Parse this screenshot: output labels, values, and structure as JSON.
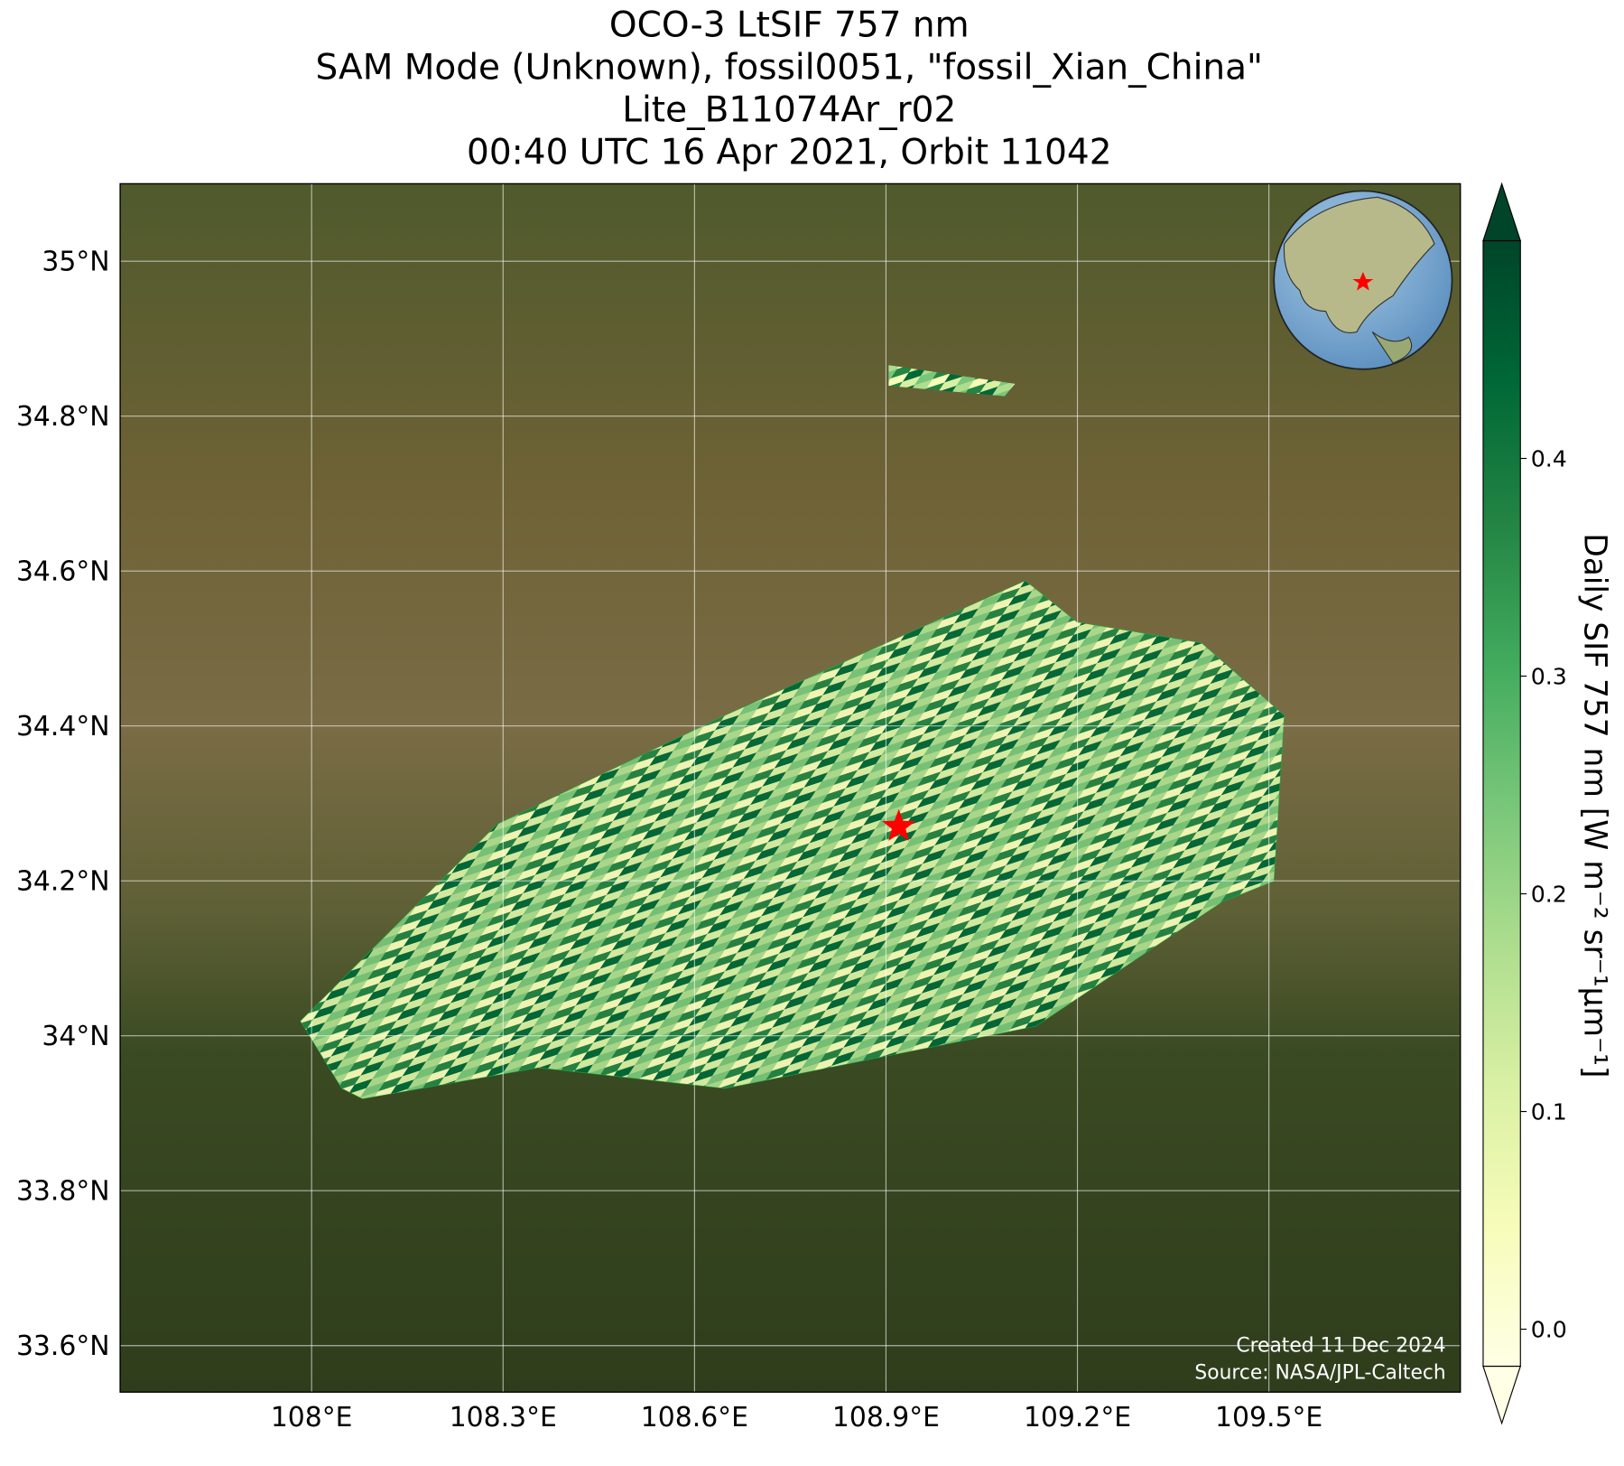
{
  "chart_data": {
    "type": "map",
    "title": [
      "OCO-3 LtSIF 757 nm",
      "SAM Mode (Unknown), fossil0051, \"fossil_Xian_China\"",
      "Lite_B11074Ar_r02",
      "00:40 UTC 16 Apr 2021, Orbit 11042"
    ],
    "xlim": [
      107.7,
      109.8
    ],
    "ylim": [
      33.54,
      35.1
    ],
    "xticks": [
      {
        "value": 108,
        "label": "108°E"
      },
      {
        "value": 108.3,
        "label": "108.3°E"
      },
      {
        "value": 108.6,
        "label": "108.6°E"
      },
      {
        "value": 108.9,
        "label": "108.9°E"
      },
      {
        "value": 109.2,
        "label": "109.2°E"
      },
      {
        "value": 109.5,
        "label": "109.5°E"
      }
    ],
    "yticks": [
      {
        "value": 33.6,
        "label": "33.6°N"
      },
      {
        "value": 33.8,
        "label": "33.8°N"
      },
      {
        "value": 34,
        "label": "34°N"
      },
      {
        "value": 34.2,
        "label": "34.2°N"
      },
      {
        "value": 34.4,
        "label": "34.4°N"
      },
      {
        "value": 34.6,
        "label": "34.6°N"
      },
      {
        "value": 34.8,
        "label": "34.8°N"
      },
      {
        "value": 35,
        "label": "35°N"
      }
    ],
    "grid": true,
    "target": {
      "lon": 108.92,
      "lat": 34.27,
      "color": "#ff0000"
    },
    "colorbar": {
      "label": "Daily SIF 757 nm [W m⁻² sr⁻¹μm⁻¹]",
      "colormap": "YlGn",
      "lim": [
        -0.017,
        0.5
      ],
      "ticks": [
        {
          "value": 0,
          "label": "0.0"
        },
        0.1,
        0.2,
        0.3,
        0.4
      ]
    },
    "credits": [
      "Created 11 Dec 2024",
      "Source: NASA/JPL-Caltech"
    ]
  }
}
